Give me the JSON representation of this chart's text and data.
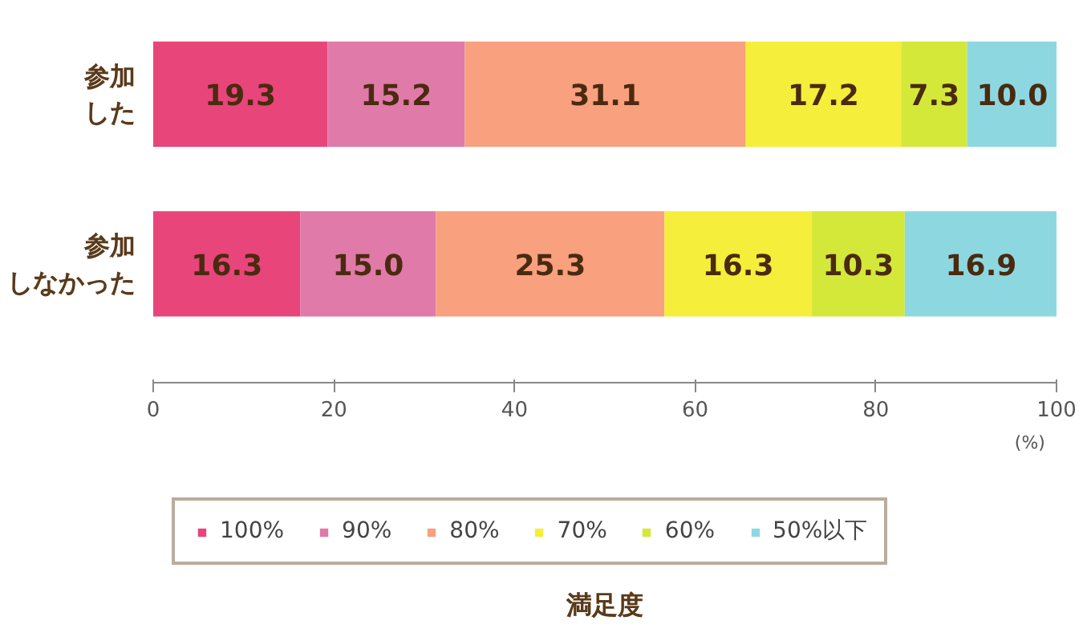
{
  "chart_data": {
    "type": "bar",
    "orientation": "horizontal",
    "stacked": true,
    "categories": [
      "参加した",
      "参加しなかった"
    ],
    "series": [
      {
        "name": "100%",
        "color": "#e8457a",
        "values": [
          19.3,
          16.3
        ],
        "value_labels": [
          "19.3",
          "16.3"
        ]
      },
      {
        "name": "90%",
        "color": "#e07aa8",
        "values": [
          15.2,
          15.0
        ],
        "value_labels": [
          "15.2",
          "15.0"
        ]
      },
      {
        "name": "80%",
        "color": "#f9a07f",
        "values": [
          31.1,
          25.3
        ],
        "value_labels": [
          "31.1",
          "25.3"
        ]
      },
      {
        "name": "70%",
        "color": "#f5ee3a",
        "values": [
          17.2,
          16.3
        ],
        "value_labels": [
          "17.2",
          "16.3"
        ]
      },
      {
        "name": "60%",
        "color": "#d4e83a",
        "values": [
          7.3,
          10.3
        ],
        "value_labels": [
          "7.3",
          "10.3"
        ]
      },
      {
        "name": "50%以下",
        "color": "#8dd8e0",
        "values": [
          10.0,
          16.9
        ],
        "value_labels": [
          "10.0",
          "16.9"
        ]
      }
    ],
    "xlim": [
      0,
      100
    ],
    "xticks": [
      0,
      20,
      40,
      60,
      80,
      100
    ],
    "xlabel": "(%)",
    "legend": "bottom",
    "legend_title": "満足度"
  }
}
